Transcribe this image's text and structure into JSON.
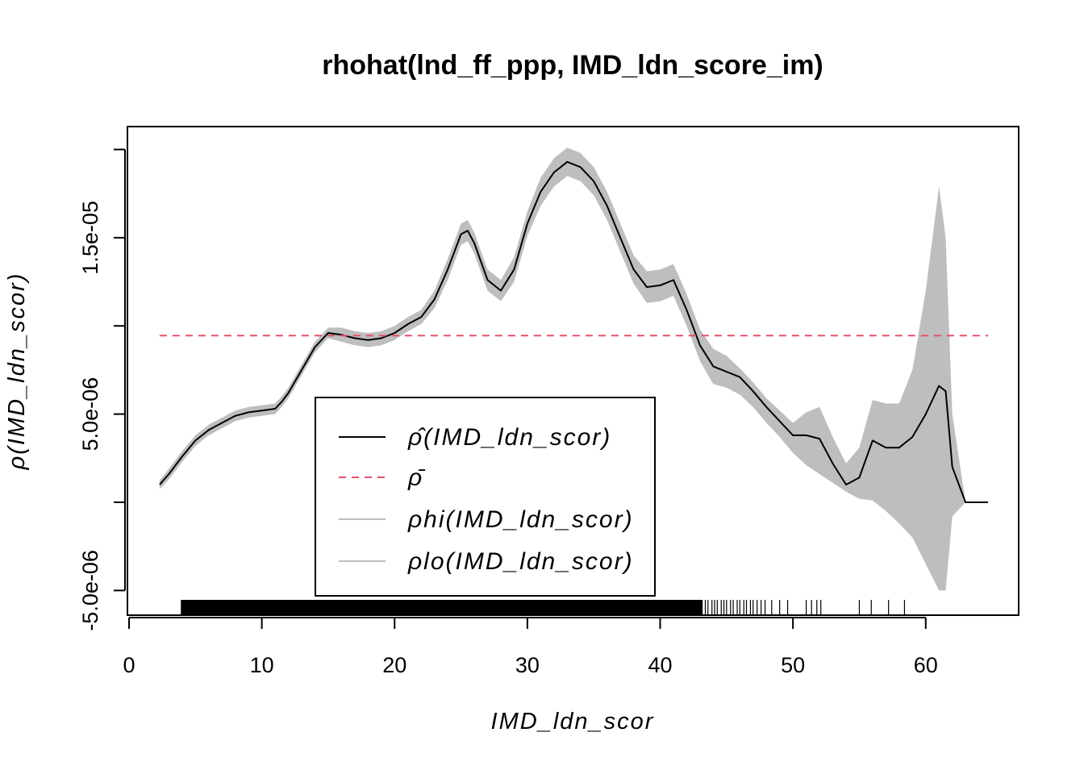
{
  "chart_data": {
    "type": "line",
    "title": "rhohat(lnd_ff_ppp, IMD_ldn_score_im)",
    "xlabel": "IMD_ldn_scor",
    "ylabel": "ρ(IMD_ldn_scor)",
    "xlim": [
      0,
      67
    ],
    "ylim": [
      -6.4e-06,
      2.13e-05
    ],
    "x_ticks": [
      0,
      10,
      20,
      30,
      40,
      50,
      60
    ],
    "x_tick_labels": [
      "0",
      "10",
      "20",
      "30",
      "40",
      "50",
      "60"
    ],
    "y_ticks": [
      -5e-06,
      0,
      5e-06,
      1e-05,
      1.5e-05,
      2e-05
    ],
    "y_tick_labels": [
      "-5.0e-06",
      "",
      "5.0e-06",
      "",
      "1.5e-05",
      ""
    ],
    "grid": false,
    "legend_position": "bottom-center",
    "rho_bar": 9.45e-06,
    "series": [
      {
        "name": "ρ̂(IMD_ldn_scor)",
        "style": "solid",
        "color": "#000000",
        "x": [
          2.3,
          3,
          4,
          5,
          6,
          7,
          8,
          9,
          10,
          11,
          11.5,
          12,
          13,
          14,
          15,
          16,
          17,
          18,
          19,
          20,
          21,
          22,
          23,
          24,
          25,
          25.5,
          26,
          27,
          28,
          29,
          30,
          31,
          32,
          33,
          34,
          35,
          36,
          37,
          38,
          39,
          40,
          41,
          42,
          43,
          44,
          45,
          46,
          47,
          48,
          49,
          50,
          51,
          52,
          53,
          54,
          55,
          56,
          57,
          58,
          59,
          60,
          61,
          61.5,
          62,
          63,
          64,
          64.7
        ],
        "y": [
          1e-06,
          1.6e-06,
          2.6e-06,
          3.5e-06,
          4.1e-06,
          4.5e-06,
          4.9e-06,
          5.1e-06,
          5.2e-06,
          5.3e-06,
          5.7e-06,
          6.2e-06,
          7.5e-06,
          8.8e-06,
          9.6e-06,
          9.5e-06,
          9.3e-06,
          9.2e-06,
          9.3e-06,
          9.6e-06,
          1.01e-05,
          1.05e-05,
          1.15e-05,
          1.32e-05,
          1.52e-05,
          1.54e-05,
          1.47e-05,
          1.26e-05,
          1.2e-05,
          1.32e-05,
          1.58e-05,
          1.76e-05,
          1.87e-05,
          1.93e-05,
          1.9e-05,
          1.82e-05,
          1.68e-05,
          1.5e-05,
          1.32e-05,
          1.22e-05,
          1.23e-05,
          1.26e-05,
          1.09e-05,
          8.9e-06,
          7.7e-06,
          7.4e-06,
          7.1e-06,
          6.3e-06,
          5.4e-06,
          4.6e-06,
          3.8e-06,
          3.8e-06,
          3.6e-06,
          2.2e-06,
          1e-06,
          1.4e-06,
          3.5e-06,
          3.1e-06,
          3.1e-06,
          3.7e-06,
          5e-06,
          6.6e-06,
          6.3e-06,
          2e-06,
          0,
          0,
          0
        ]
      },
      {
        "name": "ρ̄",
        "style": "dashed",
        "color": "#df536b",
        "x": [
          2.3,
          64.7
        ],
        "y": [
          9.45e-06,
          9.45e-06
        ]
      },
      {
        "name": "ρhi(IMD_ldn_scor)",
        "style": "band-upper",
        "color": "#bebebe",
        "x": [
          2.3,
          3,
          4,
          5,
          6,
          7,
          8,
          9,
          10,
          11,
          11.5,
          12,
          13,
          14,
          15,
          16,
          17,
          18,
          19,
          20,
          21,
          22,
          23,
          24,
          25,
          25.5,
          26,
          27,
          28,
          29,
          30,
          31,
          32,
          33,
          34,
          35,
          36,
          37,
          38,
          39,
          40,
          41,
          42,
          43,
          44,
          45,
          46,
          47,
          48,
          49,
          50,
          51,
          52,
          53,
          54,
          55,
          56,
          57,
          58,
          59,
          60,
          61,
          61.5,
          62,
          63,
          64,
          64.7
        ],
        "y": [
          1.25e-06,
          1.9e-06,
          2.9e-06,
          3.8e-06,
          4.4e-06,
          4.8e-06,
          5.2e-06,
          5.4e-06,
          5.5e-06,
          5.6e-06,
          6e-06,
          6.5e-06,
          7.8e-06,
          9.1e-06,
          9.9e-06,
          9.9e-06,
          9.7e-06,
          9.6e-06,
          9.7e-06,
          1e-05,
          1.05e-05,
          1.09e-05,
          1.2e-05,
          1.38e-05,
          1.58e-05,
          1.6e-05,
          1.53e-05,
          1.32e-05,
          1.26e-05,
          1.39e-05,
          1.65e-05,
          1.84e-05,
          1.95e-05,
          2.01e-05,
          1.98e-05,
          1.9e-05,
          1.76e-05,
          1.58e-05,
          1.4e-05,
          1.31e-05,
          1.32e-05,
          1.35e-05,
          1.18e-05,
          9.8e-06,
          8.7e-06,
          8.3e-06,
          7.6e-06,
          6.8e-06,
          5.9e-06,
          5.2e-06,
          4.5e-06,
          5.1e-06,
          5.4e-06,
          3.7e-06,
          2.2e-06,
          3.1e-06,
          5.8e-06,
          5.6e-06,
          5.6e-06,
          7.5e-06,
          1.2e-05,
          1.79e-05,
          1.5e-05,
          5e-06,
          0,
          0,
          0
        ]
      },
      {
        "name": "ρlo(IMD_ldn_scor)",
        "style": "band-lower",
        "color": "#bebebe",
        "x": [
          2.3,
          3,
          4,
          5,
          6,
          7,
          8,
          9,
          10,
          11,
          11.5,
          12,
          13,
          14,
          15,
          16,
          17,
          18,
          19,
          20,
          21,
          22,
          23,
          24,
          25,
          25.5,
          26,
          27,
          28,
          29,
          30,
          31,
          32,
          33,
          34,
          35,
          36,
          37,
          38,
          39,
          40,
          41,
          42,
          43,
          44,
          45,
          46,
          47,
          48,
          49,
          50,
          51,
          52,
          53,
          54,
          55,
          56,
          57,
          58,
          59,
          60,
          61,
          61.5,
          62,
          63,
          64,
          64.7
        ],
        "y": [
          7.5e-07,
          1.3e-06,
          2.3e-06,
          3.2e-06,
          3.8e-06,
          4.2e-06,
          4.6e-06,
          4.8e-06,
          4.9e-06,
          5e-06,
          5.4e-06,
          5.9e-06,
          7.2e-06,
          8.5e-06,
          9.3e-06,
          9.1e-06,
          8.9e-06,
          8.8e-06,
          8.9e-06,
          9.2e-06,
          9.7e-06,
          1.01e-05,
          1.1e-05,
          1.26e-05,
          1.46e-05,
          1.48e-05,
          1.41e-05,
          1.2e-05,
          1.14e-05,
          1.25e-05,
          1.51e-05,
          1.68e-05,
          1.79e-05,
          1.85e-05,
          1.82e-05,
          1.74e-05,
          1.6e-05,
          1.42e-05,
          1.24e-05,
          1.13e-05,
          1.14e-05,
          1.17e-05,
          1e-05,
          8e-06,
          6.7e-06,
          6.5e-06,
          6.1e-06,
          5.4e-06,
          4.5e-06,
          3.7e-06,
          2.8e-06,
          2.1e-06,
          1.6e-06,
          1.1e-06,
          6e-07,
          2e-07,
          1e-07,
          -5e-07,
          -1.2e-06,
          -2e-06,
          -3.5e-06,
          -5e-06,
          -5e-06,
          -8e-07,
          0,
          0,
          0
        ]
      }
    ]
  }
}
